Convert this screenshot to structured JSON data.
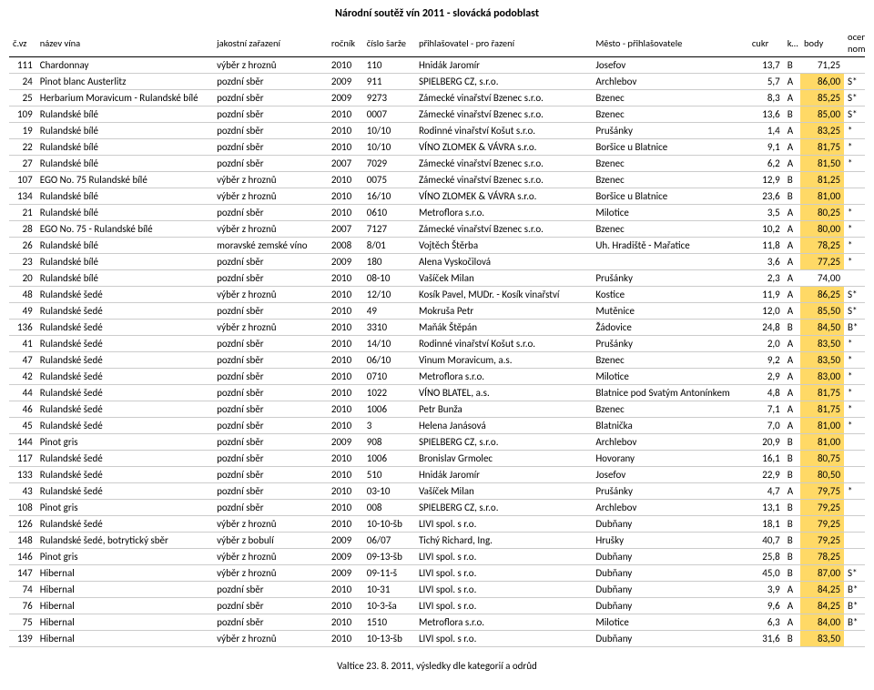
{
  "title": "Národní soutěž vín 2011 - slovácká podoblast",
  "footer": "Valtice 23. 8. 2011, výsledky dle kategorií a odrůd",
  "headers": {
    "num": "č.vz",
    "name": "název vína",
    "class": "jakostní zařazení",
    "year": "ročník",
    "batch": "číslo šarže",
    "submitter": "přihlašovatel - pro řazení",
    "city": "Město - přihlašovatele",
    "sugar": "cukr",
    "cat": "kategorie",
    "points": "body",
    "nom1": "ocenění /",
    "nom2": "nominace"
  },
  "rows": [
    {
      "num": "111",
      "name": "Chardonnay",
      "class": "výběr z hroznů",
      "year": "2010",
      "batch": "110",
      "submitter": "Hnidák Jaromír",
      "city": "Josefov",
      "sugar": "13,7",
      "cat": "B",
      "points": "71,25",
      "nom": "",
      "hl": false
    },
    {
      "num": "24",
      "name": "Pinot blanc Austerlitz",
      "class": "pozdní sběr",
      "year": "2009",
      "batch": "911",
      "submitter": "SPIELBERG CZ, s.r.o.",
      "city": "Archlebov",
      "sugar": "5,7",
      "cat": "A",
      "points": "86,00",
      "nom": "S*",
      "hl": true
    },
    {
      "num": "25",
      "name": "Herbarium Moravicum - Rulandské bílé",
      "class": "pozdní sběr",
      "year": "2009",
      "batch": "9273",
      "submitter": "Zámecké vinařství Bzenec s.r.o.",
      "city": "Bzenec",
      "sugar": "8,3",
      "cat": "A",
      "points": "85,25",
      "nom": "S*",
      "hl": true
    },
    {
      "num": "109",
      "name": "Rulandské bílé",
      "class": "pozdní sběr",
      "year": "2010",
      "batch": "0007",
      "submitter": "Zámecké vinařství Bzenec s.r.o.",
      "city": "Bzenec",
      "sugar": "13,6",
      "cat": "B",
      "points": "85,00",
      "nom": "S*",
      "hl": true
    },
    {
      "num": "19",
      "name": "Rulandské bílé",
      "class": "pozdní sběr",
      "year": "2010",
      "batch": "10/10",
      "submitter": "Rodinné vinařství Košut s.r.o.",
      "city": "Prušánky",
      "sugar": "1,4",
      "cat": "A",
      "points": "83,25",
      "nom": "*",
      "hl": true
    },
    {
      "num": "22",
      "name": "Rulandské bílé",
      "class": "pozdní sběr",
      "year": "2010",
      "batch": "10/10",
      "submitter": "VÍNO ZLOMEK & VÁVRA s.r.o.",
      "city": "Boršice u Blatnice",
      "sugar": "9,1",
      "cat": "A",
      "points": "81,75",
      "nom": "*",
      "hl": true
    },
    {
      "num": "27",
      "name": "Rulandské bílé",
      "class": "pozdní sběr",
      "year": "2007",
      "batch": "7029",
      "submitter": "Zámecké vinařství Bzenec s.r.o.",
      "city": "Bzenec",
      "sugar": "6,2",
      "cat": "A",
      "points": "81,50",
      "nom": "*",
      "hl": true
    },
    {
      "num": "107",
      "name": "EGO No. 75 Rulandské bílé",
      "class": "výběr z hroznů",
      "year": "2010",
      "batch": "0075",
      "submitter": "Zámecké vinařství Bzenec s.r.o.",
      "city": "Bzenec",
      "sugar": "12,9",
      "cat": "B",
      "points": "81,25",
      "nom": "",
      "hl": true
    },
    {
      "num": "134",
      "name": "Rulandské bílé",
      "class": "výběr z hroznů",
      "year": "2010",
      "batch": "16/10",
      "submitter": "VÍNO ZLOMEK & VÁVRA s.r.o.",
      "city": "Boršice u Blatnice",
      "sugar": "23,6",
      "cat": "B",
      "points": "81,00",
      "nom": "",
      "hl": true
    },
    {
      "num": "21",
      "name": "Rulandské bílé",
      "class": "pozdní sběr",
      "year": "2010",
      "batch": "0610",
      "submitter": "Metroflora s.r.o.",
      "city": "Milotice",
      "sugar": "3,5",
      "cat": "A",
      "points": "80,25",
      "nom": "*",
      "hl": true
    },
    {
      "num": "28",
      "name": "EGO No. 75 - Rulandské bílé",
      "class": "výběr z hroznů",
      "year": "2007",
      "batch": "7127",
      "submitter": "Zámecké vinařství Bzenec s.r.o.",
      "city": "Bzenec",
      "sugar": "10,2",
      "cat": "A",
      "points": "80,00",
      "nom": "*",
      "hl": true
    },
    {
      "num": "26",
      "name": "Rulandské bílé",
      "class": "moravské zemské víno",
      "year": "2008",
      "batch": "8/01",
      "submitter": "Vojtěch Štěrba",
      "city": "Uh. Hradiště - Mařatice",
      "sugar": "11,8",
      "cat": "A",
      "points": "78,25",
      "nom": "*",
      "hl": true
    },
    {
      "num": "23",
      "name": "Rulandské bílé",
      "class": "pozdní sběr",
      "year": "2009",
      "batch": "180",
      "submitter": "Alena Vyskočilová",
      "city": "",
      "sugar": "3,6",
      "cat": "A",
      "points": "77,25",
      "nom": "*",
      "hl": true
    },
    {
      "num": "20",
      "name": "Rulandské bílé",
      "class": "pozdní sběr",
      "year": "2010",
      "batch": "08-10",
      "submitter": "Vašíček Milan",
      "city": "Prušánky",
      "sugar": "2,3",
      "cat": "A",
      "points": "74,00",
      "nom": "",
      "hl": false
    },
    {
      "num": "48",
      "name": "Rulandské šedé",
      "class": "výběr z hroznů",
      "year": "2010",
      "batch": "12/10",
      "submitter": "Kosík Pavel, MUDr. - Kosík vinařství",
      "city": "Kostice",
      "sugar": "11,9",
      "cat": "A",
      "points": "86,25",
      "nom": "S*",
      "hl": true
    },
    {
      "num": "49",
      "name": "Rulandské šedé",
      "class": "pozdní sběr",
      "year": "2010",
      "batch": "49",
      "submitter": "Mokruša Petr",
      "city": "Mutěnice",
      "sugar": "12,0",
      "cat": "A",
      "points": "85,50",
      "nom": "S*",
      "hl": true
    },
    {
      "num": "136",
      "name": "Rulandské šedé",
      "class": "výběr z hroznů",
      "year": "2010",
      "batch": "3310",
      "submitter": "Maňák Štěpán",
      "city": "Žádovice",
      "sugar": "24,8",
      "cat": "B",
      "points": "84,50",
      "nom": "B*",
      "hl": true
    },
    {
      "num": "41",
      "name": "Rulandské šedé",
      "class": "pozdní sběr",
      "year": "2010",
      "batch": "14/10",
      "submitter": "Rodinné vinařství Košut s.r.o.",
      "city": "Prušánky",
      "sugar": "2,0",
      "cat": "A",
      "points": "83,50",
      "nom": "*",
      "hl": true
    },
    {
      "num": "47",
      "name": "Rulandské šedé",
      "class": "pozdní sběr",
      "year": "2010",
      "batch": "06/10",
      "submitter": "Vinum Moravicum, a.s.",
      "city": "Bzenec",
      "sugar": "9,2",
      "cat": "A",
      "points": "83,50",
      "nom": "*",
      "hl": true
    },
    {
      "num": "42",
      "name": "Rulandské šedé",
      "class": "pozdní sběr",
      "year": "2010",
      "batch": "0710",
      "submitter": "Metroflora s.r.o.",
      "city": "Milotice",
      "sugar": "2,9",
      "cat": "A",
      "points": "83,00",
      "nom": "*",
      "hl": true
    },
    {
      "num": "44",
      "name": "Rulandské šedé",
      "class": "pozdní sběr",
      "year": "2010",
      "batch": "1022",
      "submitter": "VÍNO BLATEL, a.s.",
      "city": "Blatnice pod Svatým Antonínkem",
      "sugar": "4,8",
      "cat": "A",
      "points": "81,75",
      "nom": "*",
      "hl": true
    },
    {
      "num": "46",
      "name": "Rulandské šedé",
      "class": "pozdní sběr",
      "year": "2010",
      "batch": "1006",
      "submitter": "Petr Bunža",
      "city": "Bzenec",
      "sugar": "7,1",
      "cat": "A",
      "points": "81,75",
      "nom": "*",
      "hl": true
    },
    {
      "num": "45",
      "name": "Rulandské šedé",
      "class": "pozdní sběr",
      "year": "2010",
      "batch": "3",
      "submitter": "Helena Janásová",
      "city": "Blatnička",
      "sugar": "7,0",
      "cat": "A",
      "points": "81,00",
      "nom": "*",
      "hl": true
    },
    {
      "num": "144",
      "name": "Pinot gris",
      "class": "pozdní sběr",
      "year": "2009",
      "batch": "908",
      "submitter": "SPIELBERG CZ, s.r.o.",
      "city": "Archlebov",
      "sugar": "20,9",
      "cat": "B",
      "points": "81,00",
      "nom": "",
      "hl": true
    },
    {
      "num": "117",
      "name": "Rulandské šedé",
      "class": "pozdní sběr",
      "year": "2010",
      "batch": "1006",
      "submitter": "Bronislav Grmolec",
      "city": "Hovorany",
      "sugar": "16,1",
      "cat": "B",
      "points": "80,75",
      "nom": "",
      "hl": true
    },
    {
      "num": "133",
      "name": "Rulandské šedé",
      "class": "pozdní sběr",
      "year": "2010",
      "batch": "510",
      "submitter": "Hnidák Jaromír",
      "city": "Josefov",
      "sugar": "22,9",
      "cat": "B",
      "points": "80,50",
      "nom": "",
      "hl": true
    },
    {
      "num": "43",
      "name": "Rulandské šedé",
      "class": "pozdní sběr",
      "year": "2010",
      "batch": "03-10",
      "submitter": "Vašíček Milan",
      "city": "Prušánky",
      "sugar": "4,7",
      "cat": "A",
      "points": "79,75",
      "nom": "*",
      "hl": true
    },
    {
      "num": "108",
      "name": "Pinot gris",
      "class": "pozdní sběr",
      "year": "2010",
      "batch": "008",
      "submitter": "SPIELBERG CZ, s.r.o.",
      "city": "Archlebov",
      "sugar": "13,1",
      "cat": "B",
      "points": "79,25",
      "nom": "",
      "hl": true
    },
    {
      "num": "126",
      "name": "Rulandské šedé",
      "class": "výběr z hroznů",
      "year": "2010",
      "batch": "10-10-šb",
      "submitter": "LIVI spol. s r.o.",
      "city": "Dubňany",
      "sugar": "18,1",
      "cat": "B",
      "points": "79,25",
      "nom": "",
      "hl": true
    },
    {
      "num": "148",
      "name": "Rulandské šedé, botrytický sběr",
      "class": "výběr z bobulí",
      "year": "2009",
      "batch": "06/07",
      "submitter": "Tichý Richard, Ing.",
      "city": "Hrušky",
      "sugar": "40,7",
      "cat": "B",
      "points": "79,25",
      "nom": "",
      "hl": true
    },
    {
      "num": "146",
      "name": "Pinot gris",
      "class": "výběr z hroznů",
      "year": "2009",
      "batch": "09-13-šb",
      "submitter": "LIVI spol. s r.o.",
      "city": "Dubňany",
      "sugar": "25,8",
      "cat": "B",
      "points": "78,25",
      "nom": "",
      "hl": true
    },
    {
      "num": "147",
      "name": "Hibernal",
      "class": "výběr z hroznů",
      "year": "2009",
      "batch": "09-11-š",
      "submitter": "LIVI spol. s r.o.",
      "city": "Dubňany",
      "sugar": "45,0",
      "cat": "B",
      "points": "87,00",
      "nom": "S*",
      "hl": true
    },
    {
      "num": "74",
      "name": "Hibernal",
      "class": "pozdní sběr",
      "year": "2010",
      "batch": "10-31",
      "submitter": "LIVI spol. s r.o.",
      "city": "Dubňany",
      "sugar": "3,9",
      "cat": "A",
      "points": "84,25",
      "nom": "B*",
      "hl": true
    },
    {
      "num": "76",
      "name": "Hibernal",
      "class": "pozdní sběr",
      "year": "2010",
      "batch": "10-3-ša",
      "submitter": "LIVI spol. s r.o.",
      "city": "Dubňany",
      "sugar": "9,6",
      "cat": "A",
      "points": "84,25",
      "nom": "B*",
      "hl": true
    },
    {
      "num": "75",
      "name": "Hibernal",
      "class": "pozdní sběr",
      "year": "2010",
      "batch": "1510",
      "submitter": "Metroflora s.r.o.",
      "city": "Milotice",
      "sugar": "6,3",
      "cat": "A",
      "points": "84,00",
      "nom": "B*",
      "hl": true
    },
    {
      "num": "139",
      "name": "Hibernal",
      "class": "výběr z hroznů",
      "year": "2010",
      "batch": "10-13-šb",
      "submitter": "LIVI spol. s r.o.",
      "city": "Dubňany",
      "sugar": "31,6",
      "cat": "B",
      "points": "83,50",
      "nom": "",
      "hl": true
    }
  ],
  "highlight_color": "#ffd966"
}
